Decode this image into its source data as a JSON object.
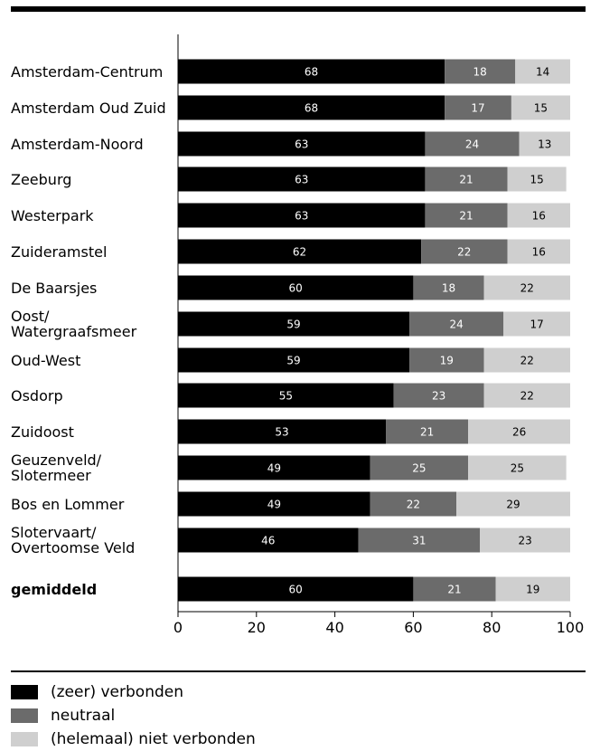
{
  "chart_data": {
    "type": "bar",
    "orientation": "horizontal",
    "stacked": true,
    "categories": [
      "Amsterdam-Centrum",
      "Amsterdam Oud Zuid",
      "Amsterdam-Noord",
      "Zeeburg",
      "Westerpark",
      "Zuideramstel",
      "De Baarsjes",
      "Oost/ Watergraafsmeer",
      "Oud-West",
      "Osdorp",
      "Zuidoost",
      "Geuzenveld/ Slotermeer",
      "Bos en Lommer",
      "Slotervaart/ Overtoomse Veld",
      "gemiddeld"
    ],
    "series": [
      {
        "name": "(zeer) verbonden",
        "color": "#000000",
        "label_color": "#ffffff",
        "values": [
          68,
          68,
          63,
          63,
          63,
          62,
          60,
          59,
          59,
          55,
          53,
          49,
          49,
          46,
          60
        ]
      },
      {
        "name": "neutraal",
        "color": "#6b6b6b",
        "label_color": "#ffffff",
        "values": [
          18,
          17,
          24,
          21,
          21,
          22,
          18,
          24,
          19,
          23,
          21,
          25,
          22,
          31,
          21
        ]
      },
      {
        "name": "(helemaal) niet verbonden",
        "color": "#cfcfcf",
        "label_color": "#000000",
        "values": [
          14,
          15,
          13,
          15,
          16,
          16,
          22,
          17,
          22,
          22,
          26,
          25,
          29,
          23,
          19
        ]
      }
    ],
    "xlim": [
      0,
      100
    ],
    "xticks": [
      "0",
      "20",
      "40",
      "60",
      "80",
      "100"
    ],
    "grid": false,
    "legend_position": "bottom-left"
  }
}
